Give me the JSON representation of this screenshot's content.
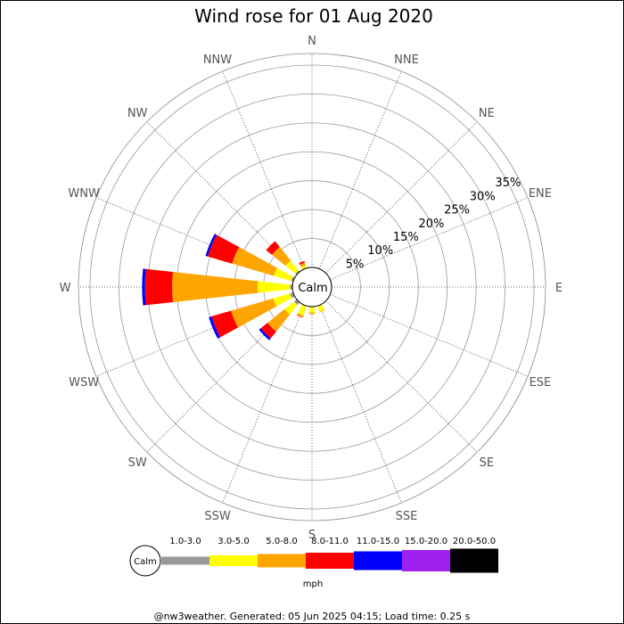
{
  "chart_data": {
    "type": "wind-rose",
    "title": "Wind rose for 01 Aug 2020",
    "directions": [
      "N",
      "NNE",
      "NE",
      "ENE",
      "E",
      "ESE",
      "SE",
      "SSE",
      "S",
      "SSW",
      "SW",
      "WSW",
      "W",
      "WNW",
      "NW",
      "NNW"
    ],
    "ring_labels": [
      "5%",
      "10%",
      "15%",
      "20%",
      "25%",
      "30%",
      "35%"
    ],
    "r_max": 37,
    "calm_label": "Calm",
    "speed_bins": [
      {
        "label": "1.0-3.0",
        "color": "#999999"
      },
      {
        "label": "3.0-5.0",
        "color": "#ffff00"
      },
      {
        "label": "5.0-8.0",
        "color": "#ffa500"
      },
      {
        "label": "8.0-11.0",
        "color": "#ff0000"
      },
      {
        "label": "11.0-15.0",
        "color": "#0000ff"
      },
      {
        "label": "15.0-20.0",
        "color": "#a020f0"
      },
      {
        "label": "20.0-50.0",
        "color": "#000000"
      }
    ],
    "units": "mph",
    "cumulative_percent": {
      "N": [
        0,
        0,
        0,
        0,
        0,
        0,
        0
      ],
      "NNE": [
        0,
        0,
        0,
        0,
        0,
        0,
        0
      ],
      "NE": [
        0,
        0,
        0,
        0,
        0,
        0,
        0
      ],
      "ENE": [
        0,
        0,
        0,
        0,
        0,
        0,
        0
      ],
      "E": [
        0,
        0,
        0,
        0,
        0,
        0,
        0
      ],
      "ESE": [
        0,
        0,
        0,
        0,
        0,
        0,
        0
      ],
      "SE": [
        0,
        0,
        0,
        0,
        0,
        0,
        0
      ],
      "SSE": [
        0,
        1.1,
        1.2,
        1.2,
        1.2,
        1.2,
        1.2
      ],
      "S": [
        0,
        1.0,
        1.3,
        1.3,
        1.3,
        1.3,
        1.3
      ],
      "SSW": [
        0,
        1.8,
        2.0,
        2.1,
        2.1,
        2.1,
        2.1
      ],
      "SW": [
        0.6,
        2.7,
        6.5,
        8.0,
        8.4,
        8.4,
        8.4
      ],
      "WSW": [
        0.6,
        3.6,
        11.2,
        14.7,
        15.2,
        15.2,
        15.2
      ],
      "W": [
        0.4,
        6.0,
        20.8,
        25.5,
        26.0,
        26.0,
        26.0
      ],
      "WNW": [
        0.4,
        3.5,
        11.0,
        15.4,
        15.8,
        15.8,
        15.8
      ],
      "NW": [
        0.3,
        2.5,
        5.5,
        6.8,
        6.8,
        6.8,
        6.8
      ],
      "NNW": [
        0,
        0.5,
        1.0,
        1.3,
        1.3,
        1.3,
        1.3
      ]
    }
  },
  "footer": "@nw3weather. Generated: 05 Jun 2025 04:15; Load time: 0.25 s"
}
